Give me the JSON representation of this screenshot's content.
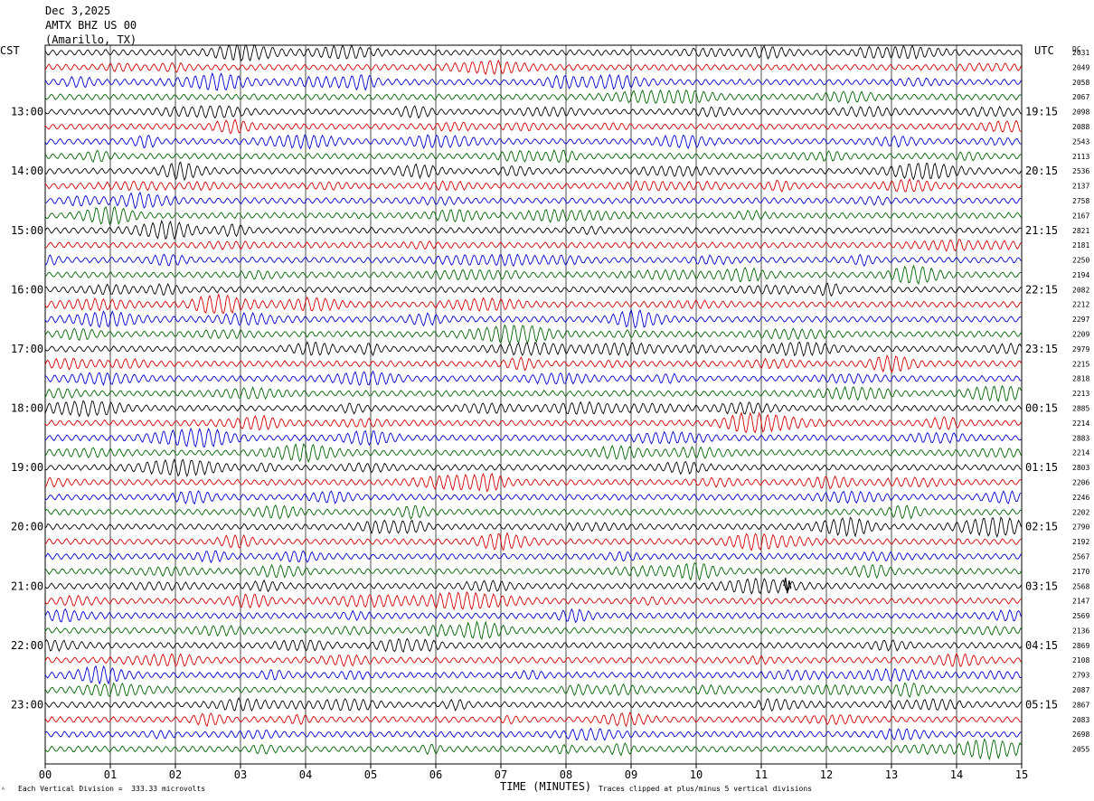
{
  "header": {
    "date": "Dec 3,2025",
    "station": "AMTX BHZ US 00",
    "location": "(Amarillo, TX)"
  },
  "left_axis_title": "CST",
  "right_axis_title": "UTC",
  "dc_label": "DC",
  "x_axis_title": "TIME (MINUTES)",
  "footer": {
    "left": "Each Vertical Division =  333.33 microvolts",
    "right": "Traces clipped at plus/minus 5 vertical divisions"
  },
  "colors": {
    "black": "#000000",
    "red": "#d40000",
    "blue": "#0000d0",
    "green": "#006400",
    "grid": "#000000"
  },
  "chart_data": {
    "type": "line",
    "title": "AMTX BHZ US 00 (Amarillo, TX)",
    "xlabel": "TIME (MINUTES)",
    "x_ticks": [
      "00",
      "01",
      "02",
      "03",
      "04",
      "05",
      "06",
      "07",
      "08",
      "09",
      "10",
      "11",
      "12",
      "13",
      "14",
      "15"
    ],
    "xlim": [
      0,
      15
    ],
    "trace_color_cycle": [
      "black",
      "red",
      "blue",
      "green"
    ],
    "hour_rows": [
      {
        "cst": "",
        "utc": ""
      },
      {
        "cst": "13:00",
        "utc": "19:15"
      },
      {
        "cst": "14:00",
        "utc": "20:15"
      },
      {
        "cst": "15:00",
        "utc": "21:15"
      },
      {
        "cst": "16:00",
        "utc": "22:15"
      },
      {
        "cst": "17:00",
        "utc": "23:15"
      },
      {
        "cst": "18:00",
        "utc": "00:15"
      },
      {
        "cst": "19:00",
        "utc": "01:15"
      },
      {
        "cst": "20:00",
        "utc": "02:15"
      },
      {
        "cst": "21:00",
        "utc": "03:15"
      },
      {
        "cst": "22:00",
        "utc": "04:15"
      },
      {
        "cst": "23:00",
        "utc": "05:15"
      }
    ],
    "dc_offsets": [
      "2031",
      "2049",
      "2058",
      "2067",
      "2098",
      "2088",
      "2543",
      "2113",
      "2536",
      "2137",
      "2758",
      "2167",
      "2821",
      "2181",
      "2250",
      "2194",
      "2082",
      "2212",
      "2297",
      "2209",
      "2979",
      "2215",
      "2818",
      "2213",
      "2885",
      "2214",
      "2883",
      "2214",
      "2803",
      "2206",
      "2246",
      "2202",
      "2790",
      "2192",
      "2567",
      "2170",
      "2568",
      "2147",
      "2569",
      "2136",
      "2869",
      "2108",
      "2793",
      "2087",
      "2867",
      "2083",
      "2698",
      "2055"
    ],
    "traces_count": 48,
    "event_marker": {
      "row": 36,
      "minute": 11.4
    }
  }
}
